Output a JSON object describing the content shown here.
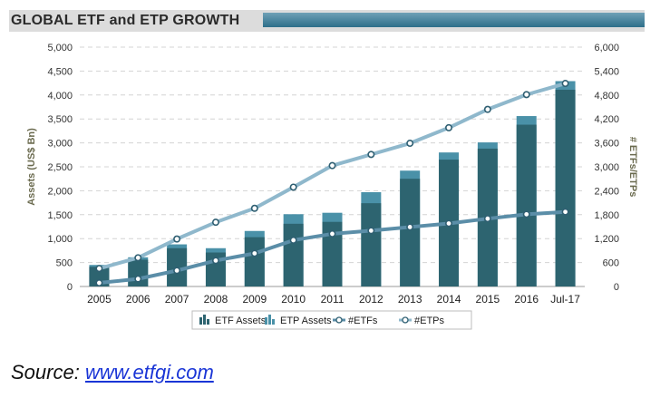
{
  "title": "GLOBAL ETF and ETP GROWTH",
  "source": {
    "label": "Source:",
    "link": "www.etfgi.com"
  },
  "chart_data": {
    "type": "bar",
    "categories": [
      "2005",
      "2006",
      "2007",
      "2008",
      "2009",
      "2010",
      "2011",
      "2012",
      "2013",
      "2014",
      "2015",
      "2016",
      "Jul-17"
    ],
    "y_left": {
      "label": "Assets (US$ Bn)",
      "range": [
        0,
        5000
      ],
      "ticks": [
        "0",
        "500",
        "1,000",
        "1,500",
        "2,000",
        "2,500",
        "3,000",
        "3,500",
        "4,000",
        "4,500",
        "5,000"
      ]
    },
    "y_right": {
      "label": "# ETFs/ETPs",
      "range": [
        0,
        6000
      ],
      "ticks": [
        "0",
        "600",
        "1,200",
        "1,800",
        "2,400",
        "3,000",
        "3,600",
        "4,200",
        "4,800",
        "5,400",
        "6,000"
      ]
    },
    "bar_series": [
      {
        "name": "ETF Assets",
        "color": "#2d6470",
        "values": [
          410,
          560,
          800,
          710,
          1030,
          1310,
          1350,
          1740,
          2250,
          2650,
          2880,
          3380,
          4110
        ]
      },
      {
        "name": "ETP Assets",
        "color": "#4a91a8",
        "values": [
          450,
          610,
          880,
          800,
          1160,
          1510,
          1540,
          1970,
          2420,
          2800,
          3010,
          3560,
          4290
        ]
      }
    ],
    "line_series": [
      {
        "name": "#ETFs",
        "color": "#5b8ea8",
        "values": [
          90,
          190,
          400,
          650,
          830,
          1160,
          1320,
          1400,
          1490,
          1580,
          1700,
          1810,
          1870
        ]
      },
      {
        "name": "#ETPs",
        "color": "#8fb8cc",
        "values": [
          450,
          720,
          1190,
          1610,
          1960,
          2490,
          3030,
          3310,
          3590,
          3980,
          4440,
          4810,
          5090
        ]
      }
    ],
    "legend": [
      "ETF Assets",
      "ETP Assets",
      "#ETFs",
      "#ETPs"
    ],
    "legend_position": "bottom",
    "grid": true
  }
}
